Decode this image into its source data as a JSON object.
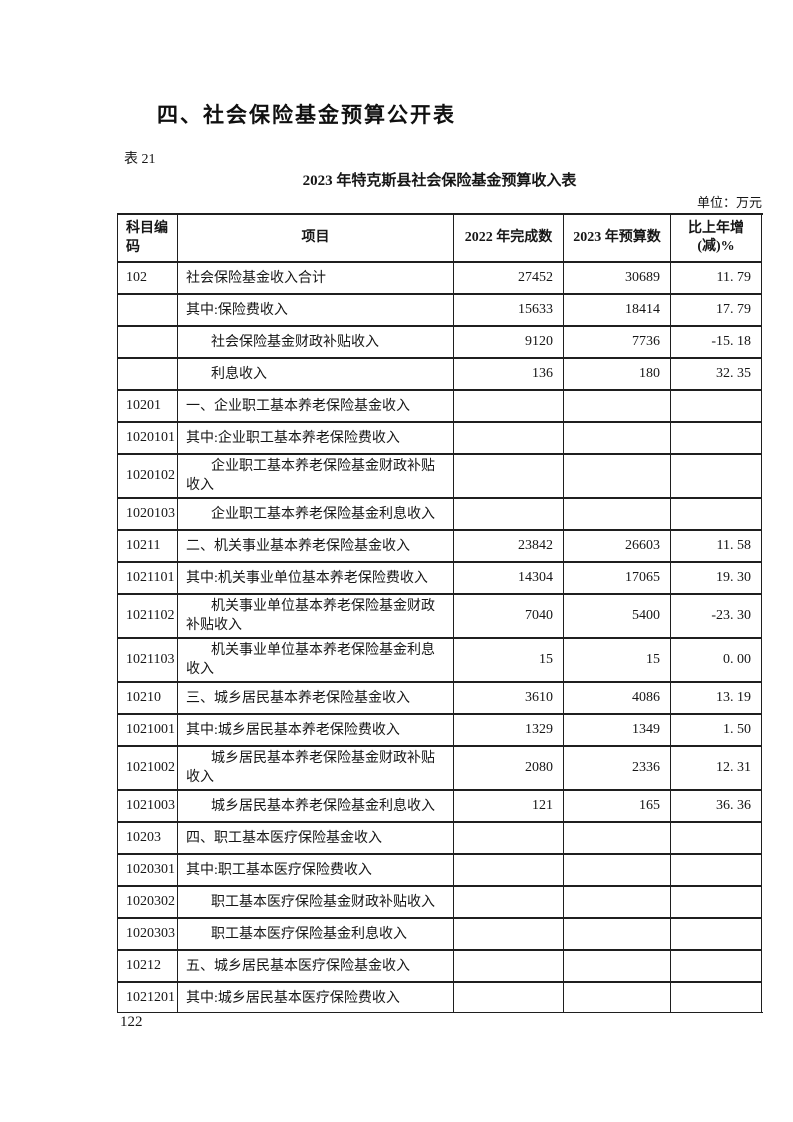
{
  "page": {
    "heading": "四、社会保险基金预算公开表",
    "table_label": "表 21",
    "table_title": "2023 年特克斯县社会保险基金预算收入表",
    "unit_note": "单位：万元",
    "page_number": "122"
  },
  "table": {
    "header": {
      "col_code": "科目编码",
      "col_item": "项目",
      "col_2022": "2022 年完成数",
      "col_2023": "2023 年预算数",
      "col_pct_line1": "比上年增",
      "col_pct_line2": "(减)%"
    },
    "rows": [
      {
        "code": "102",
        "item": "社会保险基金收入合计",
        "v2022": "27452",
        "v2023": "30689",
        "pct": "11. 79",
        "indent": false
      },
      {
        "code": "",
        "item": "其中:保险费收入",
        "v2022": "15633",
        "v2023": "18414",
        "pct": "17. 79",
        "indent": false
      },
      {
        "code": "",
        "item": "社会保险基金财政补贴收入",
        "v2022": "9120",
        "v2023": "7736",
        "pct": "-15. 18",
        "indent": true
      },
      {
        "code": "",
        "item": "利息收入",
        "v2022": "136",
        "v2023": "180",
        "pct": "32. 35",
        "indent": true
      },
      {
        "code": "10201",
        "item": "一、企业职工基本养老保险基金收入",
        "v2022": "",
        "v2023": "",
        "pct": "",
        "indent": false
      },
      {
        "code": "1020101",
        "item": "其中:企业职工基本养老保险费收入",
        "v2022": "",
        "v2023": "",
        "pct": "",
        "indent": false
      },
      {
        "code": "1020102",
        "item": "企业职工基本养老保险基金财政补贴",
        "item2": "收入",
        "v2022": "",
        "v2023": "",
        "pct": "",
        "indent": true
      },
      {
        "code": "1020103",
        "item": "企业职工基本养老保险基金利息收入",
        "v2022": "",
        "v2023": "",
        "pct": "",
        "indent": true
      },
      {
        "code": "10211",
        "item": "二、机关事业基本养老保险基金收入",
        "v2022": "23842",
        "v2023": "26603",
        "pct": "11. 58",
        "indent": false
      },
      {
        "code": "1021101",
        "item": "其中:机关事业单位基本养老保险费收入",
        "v2022": "14304",
        "v2023": "17065",
        "pct": "19. 30",
        "indent": false
      },
      {
        "code": "1021102",
        "item": "机关事业单位基本养老保险基金财政",
        "item2": "补贴收入",
        "v2022": "7040",
        "v2023": "5400",
        "pct": "-23. 30",
        "indent": true
      },
      {
        "code": "1021103",
        "item": "机关事业单位基本养老保险基金利息",
        "item2": "收入",
        "v2022": "15",
        "v2023": "15",
        "pct": "0. 00",
        "indent": true
      },
      {
        "code": "10210",
        "item": "三、城乡居民基本养老保险基金收入",
        "v2022": "3610",
        "v2023": "4086",
        "pct": "13. 19",
        "indent": false
      },
      {
        "code": "1021001",
        "item": "其中:城乡居民基本养老保险费收入",
        "v2022": "1329",
        "v2023": "1349",
        "pct": "1. 50",
        "indent": false
      },
      {
        "code": "1021002",
        "item": "城乡居民基本养老保险基金财政补贴",
        "item2": "收入",
        "v2022": "2080",
        "v2023": "2336",
        "pct": "12. 31",
        "indent": true
      },
      {
        "code": "1021003",
        "item": "城乡居民基本养老保险基金利息收入",
        "v2022": "121",
        "v2023": "165",
        "pct": "36. 36",
        "indent": true
      },
      {
        "code": "10203",
        "item": "四、职工基本医疗保险基金收入",
        "v2022": "",
        "v2023": "",
        "pct": "",
        "indent": false
      },
      {
        "code": "1020301",
        "item": "其中:职工基本医疗保险费收入",
        "v2022": "",
        "v2023": "",
        "pct": "",
        "indent": false
      },
      {
        "code": "1020302",
        "item": "职工基本医疗保险基金财政补贴收入",
        "v2022": "",
        "v2023": "",
        "pct": "",
        "indent": true
      },
      {
        "code": "1020303",
        "item": "职工基本医疗保险基金利息收入",
        "v2022": "",
        "v2023": "",
        "pct": "",
        "indent": true
      },
      {
        "code": "10212",
        "item": "五、城乡居民基本医疗保险基金收入",
        "v2022": "",
        "v2023": "",
        "pct": "",
        "indent": false
      },
      {
        "code": "1021201",
        "item": "其中:城乡居民基本医疗保险费收入",
        "v2022": "",
        "v2023": "",
        "pct": "",
        "indent": false,
        "clipped": true
      }
    ]
  }
}
